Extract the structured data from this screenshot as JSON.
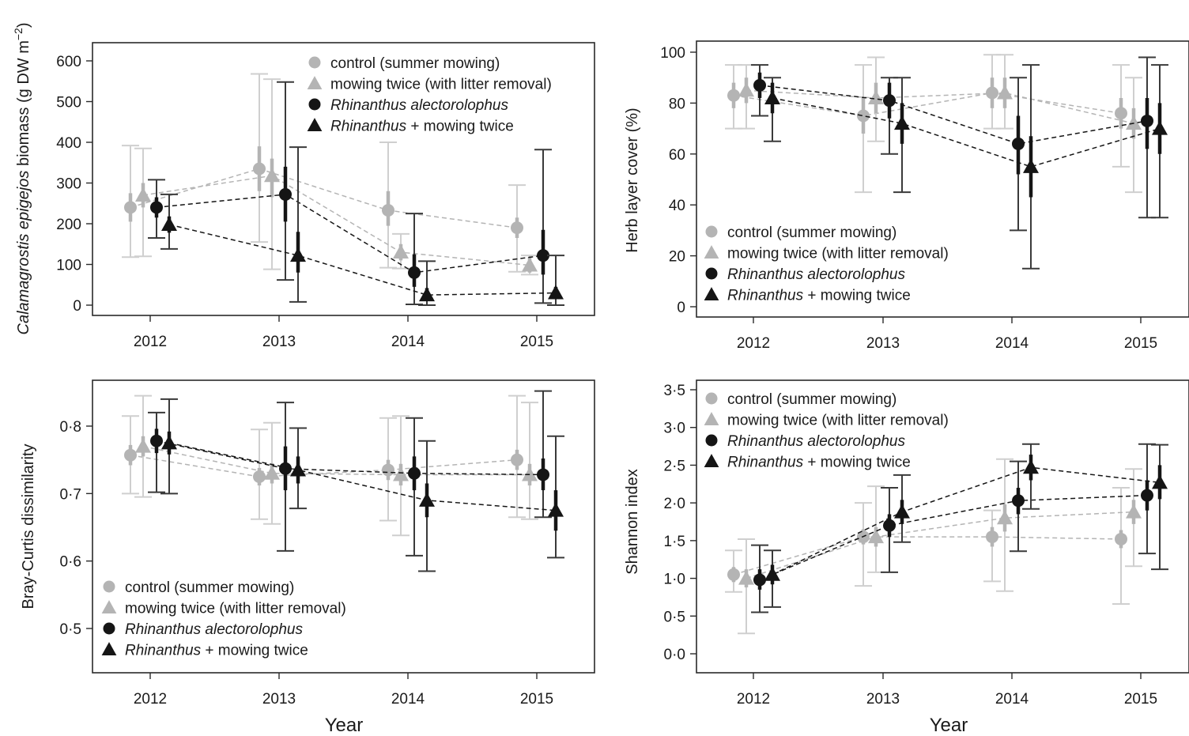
{
  "figure": {
    "xlabel": "Year",
    "legend": [
      {
        "label": "control (summer mowing)",
        "italic_part": "",
        "marker": "circle",
        "color": "#b4b4b4"
      },
      {
        "label": "mowing twice (with litter removal)",
        "italic_part": "",
        "marker": "triangle",
        "color": "#b4b4b4"
      },
      {
        "label": "",
        "italic_part": "Rhinanthus alectorolophus",
        "marker": "circle",
        "color": "#151515"
      },
      {
        "label": " + mowing twice",
        "italic_part": "Rhinanthus",
        "marker": "triangle",
        "color": "#151515"
      }
    ],
    "colors": {
      "control": "#b4b4b4",
      "control_err": "#cfcfcf",
      "rhinanthus": "#151515",
      "rhinanthus_err": "#3a3a3a"
    }
  },
  "chart_data": [
    {
      "type": "line",
      "panel": "biomass",
      "ylabel_italic": "Calamagrostis epigejos",
      "ylabel_rest": " biomass (g DW m",
      "ylabel_sup": "−2",
      "ylabel_end": ")",
      "xlabel": "",
      "categories": [
        "2012",
        "2013",
        "2014",
        "2015"
      ],
      "ylim": [
        0,
        600
      ],
      "yticks": [
        0,
        100,
        200,
        300,
        400,
        500,
        600
      ],
      "ytick_labels": [
        "0",
        "100",
        "200",
        "300",
        "400",
        "500",
        "600"
      ],
      "legend_position": "top-right",
      "series": [
        {
          "name": "control (summer mowing)",
          "values": [
            240,
            335,
            233,
            190
          ],
          "se": [
            [
              205,
              275
            ],
            [
              280,
              390
            ],
            [
              195,
              280
            ],
            [
              165,
              215
            ]
          ],
          "range": [
            [
              118,
              392
            ],
            [
              155,
              568
            ],
            [
              92,
              400
            ],
            [
              82,
              295
            ]
          ]
        },
        {
          "name": "mowing twice (with litter removal)",
          "values": [
            270,
            318,
            130,
            98
          ],
          "se": [
            [
              240,
              300
            ],
            [
              265,
              360
            ],
            [
              110,
              150
            ],
            [
              80,
              118
            ]
          ],
          "range": [
            [
              120,
              385
            ],
            [
              88,
              555
            ],
            [
              90,
              175
            ],
            [
              75,
              122
            ]
          ]
        },
        {
          "name": "Rhinanthus alectorolophus",
          "values": [
            240,
            272,
            80,
            122
          ],
          "se": [
            [
              215,
              265
            ],
            [
              205,
              340
            ],
            [
              45,
              125
            ],
            [
              75,
              185
            ]
          ],
          "range": [
            [
              165,
              308
            ],
            [
              62,
              548
            ],
            [
              2,
              225
            ],
            [
              5,
              382
            ]
          ]
        },
        {
          "name": "Rhinanthus + mowing twice",
          "values": [
            198,
            122,
            25,
            30
          ],
          "se": [
            [
              178,
              218
            ],
            [
              80,
              180
            ],
            [
              15,
              42
            ],
            [
              15,
              45
            ]
          ],
          "range": [
            [
              138,
              272
            ],
            [
              8,
              388
            ],
            [
              0,
              108
            ],
            [
              0,
              122
            ]
          ]
        }
      ]
    },
    {
      "type": "line",
      "panel": "cover",
      "ylabel_italic": "",
      "ylabel_rest": "Herb layer cover (%)",
      "ylabel_sup": "",
      "ylabel_end": "",
      "xlabel": "",
      "categories": [
        "2012",
        "2013",
        "2014",
        "2015"
      ],
      "ylim": [
        0,
        100
      ],
      "yticks": [
        0,
        20,
        40,
        60,
        80,
        100
      ],
      "ytick_labels": [
        "0",
        "20",
        "40",
        "60",
        "80",
        "100"
      ],
      "legend_position": "bottom-left",
      "series": [
        {
          "name": "control (summer mowing)",
          "values": [
            83,
            75,
            84,
            76
          ],
          "se": [
            [
              78,
              88
            ],
            [
              68,
              82
            ],
            [
              78,
              90
            ],
            [
              70,
              82
            ]
          ],
          "range": [
            [
              70,
              95
            ],
            [
              45,
              95
            ],
            [
              70,
              99
            ],
            [
              55,
              95
            ]
          ]
        },
        {
          "name": "mowing twice (with litter removal)",
          "values": [
            85,
            82,
            84,
            72
          ],
          "se": [
            [
              80,
              90
            ],
            [
              76,
              88
            ],
            [
              78,
              90
            ],
            [
              66,
              78
            ]
          ],
          "range": [
            [
              70,
              95
            ],
            [
              65,
              98
            ],
            [
              70,
              99
            ],
            [
              45,
              90
            ]
          ]
        },
        {
          "name": "Rhinanthus alectorolophus",
          "values": [
            87,
            81,
            64,
            73
          ],
          "se": [
            [
              82,
              92
            ],
            [
              74,
              88
            ],
            [
              52,
              75
            ],
            [
              62,
              82
            ]
          ],
          "range": [
            [
              75,
              95
            ],
            [
              60,
              90
            ],
            [
              30,
              90
            ],
            [
              35,
              98
            ]
          ]
        },
        {
          "name": "Rhinanthus + mowing twice",
          "values": [
            82,
            72,
            55,
            70
          ],
          "se": [
            [
              76,
              88
            ],
            [
              64,
              80
            ],
            [
              43,
              67
            ],
            [
              60,
              80
            ]
          ],
          "range": [
            [
              65,
              90
            ],
            [
              45,
              90
            ],
            [
              15,
              95
            ],
            [
              35,
              95
            ]
          ]
        }
      ]
    },
    {
      "type": "line",
      "panel": "bray-curtis",
      "ylabel_italic": "",
      "ylabel_rest": "Bray-Curtis dissimilarity",
      "ylabel_sup": "",
      "ylabel_end": "",
      "xlabel": "Year",
      "categories": [
        "2012",
        "2013",
        "2014",
        "2015"
      ],
      "ylim": [
        0.45,
        0.87
      ],
      "yticks": [
        0.5,
        0.6,
        0.7,
        0.8
      ],
      "ytick_labels": [
        "0·5",
        "0·6",
        "0·7",
        "0·8"
      ],
      "legend_position": "bottom-left",
      "series": [
        {
          "name": "control (summer mowing)",
          "values": [
            0.757,
            0.725,
            0.735,
            0.75
          ],
          "se": [
            [
              0.742,
              0.772
            ],
            [
              0.712,
              0.738
            ],
            [
              0.72,
              0.75
            ],
            [
              0.735,
              0.765
            ]
          ],
          "range": [
            [
              0.7,
              0.815
            ],
            [
              0.662,
              0.795
            ],
            [
              0.66,
              0.812
            ],
            [
              0.665,
              0.845
            ]
          ]
        },
        {
          "name": "mowing twice (with litter removal)",
          "values": [
            0.77,
            0.73,
            0.728,
            0.728
          ],
          "se": [
            [
              0.755,
              0.785
            ],
            [
              0.715,
              0.745
            ],
            [
              0.712,
              0.744
            ],
            [
              0.712,
              0.744
            ]
          ],
          "range": [
            [
              0.695,
              0.845
            ],
            [
              0.655,
              0.805
            ],
            [
              0.638,
              0.815
            ],
            [
              0.662,
              0.835
            ]
          ]
        },
        {
          "name": "Rhinanthus alectorolophus",
          "values": [
            0.778,
            0.737,
            0.73,
            0.728
          ],
          "se": [
            [
              0.76,
              0.796
            ],
            [
              0.705,
              0.77
            ],
            [
              0.705,
              0.755
            ],
            [
              0.705,
              0.752
            ]
          ],
          "range": [
            [
              0.702,
              0.82
            ],
            [
              0.615,
              0.835
            ],
            [
              0.608,
              0.812
            ],
            [
              0.665,
              0.852
            ]
          ]
        },
        {
          "name": "Rhinanthus + mowing twice",
          "values": [
            0.775,
            0.735,
            0.69,
            0.675
          ],
          "se": [
            [
              0.758,
              0.792
            ],
            [
              0.715,
              0.755
            ],
            [
              0.665,
              0.715
            ],
            [
              0.645,
              0.705
            ]
          ],
          "range": [
            [
              0.7,
              0.84
            ],
            [
              0.678,
              0.797
            ],
            [
              0.585,
              0.778
            ],
            [
              0.605,
              0.785
            ]
          ]
        }
      ]
    },
    {
      "type": "line",
      "panel": "shannon",
      "ylabel_italic": "",
      "ylabel_rest": "Shannon index",
      "ylabel_sup": "",
      "ylabel_end": "",
      "xlabel": "Year",
      "categories": [
        "2012",
        "2013",
        "2014",
        "2015"
      ],
      "ylim": [
        -0.2,
        3.6
      ],
      "yticks": [
        0,
        0.5,
        1,
        1.5,
        2,
        2.5,
        3,
        3.5
      ],
      "ytick_labels": [
        "0·0",
        "0·5",
        "1·0",
        "1·5",
        "2·0",
        "2·5",
        "3·0",
        "3·5"
      ],
      "legend_position": "top-left",
      "series": [
        {
          "name": "control (summer mowing)",
          "values": [
            1.05,
            1.55,
            1.55,
            1.52
          ],
          "se": [
            [
              0.95,
              1.15
            ],
            [
              1.45,
              1.65
            ],
            [
              1.42,
              1.68
            ],
            [
              1.4,
              1.64
            ]
          ],
          "range": [
            [
              0.82,
              1.37
            ],
            [
              0.9,
              2.0
            ],
            [
              0.96,
              1.9
            ],
            [
              0.66,
              2.2
            ]
          ]
        },
        {
          "name": "mowing twice (with litter removal)",
          "values": [
            1.0,
            1.55,
            1.8,
            1.88
          ],
          "se": [
            [
              0.88,
              1.12
            ],
            [
              1.42,
              1.68
            ],
            [
              1.62,
              1.98
            ],
            [
              1.72,
              2.04
            ]
          ],
          "range": [
            [
              0.27,
              1.52
            ],
            [
              1.08,
              2.22
            ],
            [
              0.83,
              2.58
            ],
            [
              1.16,
              2.45
            ]
          ]
        },
        {
          "name": "Rhinanthus alectorolophus",
          "values": [
            0.98,
            1.7,
            2.03,
            2.1
          ],
          "se": [
            [
              0.85,
              1.12
            ],
            [
              1.55,
              1.85
            ],
            [
              1.85,
              2.2
            ],
            [
              1.9,
              2.3
            ]
          ],
          "range": [
            [
              0.55,
              1.44
            ],
            [
              1.08,
              2.2
            ],
            [
              1.36,
              2.55
            ],
            [
              1.33,
              2.78
            ]
          ]
        },
        {
          "name": "Rhinanthus + mowing twice",
          "values": [
            1.05,
            1.88,
            2.47,
            2.27
          ],
          "se": [
            [
              0.92,
              1.18
            ],
            [
              1.72,
              2.04
            ],
            [
              2.3,
              2.64
            ],
            [
              2.05,
              2.5
            ]
          ],
          "range": [
            [
              0.62,
              1.37
            ],
            [
              1.48,
              2.37
            ],
            [
              1.92,
              2.78
            ],
            [
              1.12,
              2.77
            ]
          ]
        }
      ]
    }
  ]
}
